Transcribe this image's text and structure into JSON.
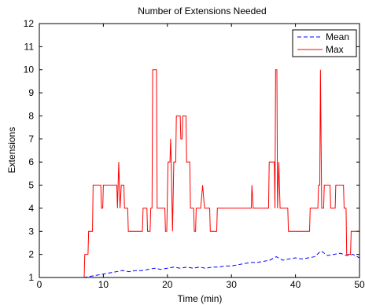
{
  "chart_data": {
    "type": "line",
    "title": "Number of Extensions Needed",
    "xlabel": "Time (min)",
    "ylabel": "Extensions",
    "xlim": [
      0,
      50
    ],
    "ylim": [
      1,
      12
    ],
    "xticks": [
      0,
      10,
      20,
      30,
      40,
      50
    ],
    "yticks": [
      1,
      2,
      3,
      4,
      5,
      6,
      7,
      8,
      9,
      10,
      11,
      12
    ],
    "grid": false,
    "legend": "top-right",
    "series": [
      {
        "name": "Mean",
        "color": "#0000ff",
        "style": "dashed",
        "points": [
          [
            0,
            1
          ],
          [
            7,
            1
          ],
          [
            8,
            1.05
          ],
          [
            9,
            1.1
          ],
          [
            10,
            1.15
          ],
          [
            11,
            1.2
          ],
          [
            12,
            1.25
          ],
          [
            13,
            1.3
          ],
          [
            14,
            1.25
          ],
          [
            15,
            1.3
          ],
          [
            16,
            1.3
          ],
          [
            17,
            1.35
          ],
          [
            18,
            1.4
          ],
          [
            19,
            1.35
          ],
          [
            20,
            1.4
          ],
          [
            21,
            1.45
          ],
          [
            22,
            1.4
          ],
          [
            23,
            1.45
          ],
          [
            24,
            1.4
          ],
          [
            25,
            1.45
          ],
          [
            26,
            1.4
          ],
          [
            27,
            1.45
          ],
          [
            28,
            1.45
          ],
          [
            29,
            1.5
          ],
          [
            30,
            1.5
          ],
          [
            31,
            1.55
          ],
          [
            32,
            1.6
          ],
          [
            33,
            1.65
          ],
          [
            34,
            1.65
          ],
          [
            35,
            1.7
          ],
          [
            36,
            1.75
          ],
          [
            37,
            1.9
          ],
          [
            38,
            1.75
          ],
          [
            39,
            1.8
          ],
          [
            40,
            1.85
          ],
          [
            41,
            1.8
          ],
          [
            42,
            1.85
          ],
          [
            43,
            1.9
          ],
          [
            44,
            2.15
          ],
          [
            45,
            1.95
          ],
          [
            46,
            2.0
          ],
          [
            47,
            2.05
          ],
          [
            48,
            1.95
          ],
          [
            49,
            2.0
          ],
          [
            50,
            1.85
          ]
        ]
      },
      {
        "name": "Max",
        "color": "#ff0000",
        "style": "solid",
        "points": [
          [
            0,
            1
          ],
          [
            7,
            1
          ],
          [
            7.1,
            2
          ],
          [
            7.6,
            2
          ],
          [
            7.7,
            3
          ],
          [
            8.3,
            3
          ],
          [
            8.4,
            5
          ],
          [
            9.6,
            5
          ],
          [
            9.7,
            4
          ],
          [
            9.9,
            4
          ],
          [
            10,
            5
          ],
          [
            12.1,
            5
          ],
          [
            12.2,
            4
          ],
          [
            12.4,
            6
          ],
          [
            12.6,
            4
          ],
          [
            12.8,
            5
          ],
          [
            13.2,
            5
          ],
          [
            13.3,
            4
          ],
          [
            13.8,
            4
          ],
          [
            13.9,
            3
          ],
          [
            16.1,
            3
          ],
          [
            16.2,
            4
          ],
          [
            16.8,
            4
          ],
          [
            16.9,
            3
          ],
          [
            17.3,
            3
          ],
          [
            17.4,
            4
          ],
          [
            17.6,
            4
          ],
          [
            17.7,
            10
          ],
          [
            18.3,
            10
          ],
          [
            18.4,
            4
          ],
          [
            19.6,
            4
          ],
          [
            19.7,
            3
          ],
          [
            19.9,
            3
          ],
          [
            20.1,
            6
          ],
          [
            20.4,
            6
          ],
          [
            20.5,
            7
          ],
          [
            20.6,
            6
          ],
          [
            20.8,
            3
          ],
          [
            21,
            6
          ],
          [
            21.3,
            6
          ],
          [
            21.4,
            8
          ],
          [
            22,
            8
          ],
          [
            22.1,
            7
          ],
          [
            22.3,
            7
          ],
          [
            22.4,
            8
          ],
          [
            22.9,
            8
          ],
          [
            23,
            6
          ],
          [
            23.5,
            6
          ],
          [
            23.6,
            4
          ],
          [
            24.1,
            4
          ],
          [
            24.2,
            3
          ],
          [
            24.4,
            3
          ],
          [
            24.5,
            4
          ],
          [
            25.2,
            4
          ],
          [
            25.5,
            5
          ],
          [
            25.8,
            4
          ],
          [
            26.6,
            4
          ],
          [
            26.7,
            3
          ],
          [
            27.7,
            3
          ],
          [
            27.8,
            4
          ],
          [
            33.1,
            4
          ],
          [
            33.2,
            5
          ],
          [
            33.4,
            4
          ],
          [
            35.8,
            4
          ],
          [
            35.9,
            6
          ],
          [
            36.7,
            6
          ],
          [
            36.8,
            4
          ],
          [
            36.9,
            10
          ],
          [
            37.1,
            10
          ],
          [
            37.2,
            4
          ],
          [
            37.4,
            6
          ],
          [
            37.6,
            4
          ],
          [
            38.8,
            4
          ],
          [
            38.9,
            3
          ],
          [
            42.2,
            3
          ],
          [
            42.3,
            4
          ],
          [
            43.5,
            4
          ],
          [
            43.6,
            5
          ],
          [
            43.8,
            5
          ],
          [
            43.9,
            10
          ],
          [
            44.1,
            4
          ],
          [
            44.4,
            4
          ],
          [
            44.5,
            5
          ],
          [
            45.4,
            5
          ],
          [
            45.5,
            4
          ],
          [
            46.2,
            4
          ],
          [
            46.3,
            5
          ],
          [
            47.5,
            5
          ],
          [
            47.6,
            4
          ],
          [
            47.9,
            4
          ],
          [
            48,
            2
          ],
          [
            48.6,
            2
          ],
          [
            48.7,
            3
          ],
          [
            50,
            3
          ]
        ]
      }
    ]
  }
}
